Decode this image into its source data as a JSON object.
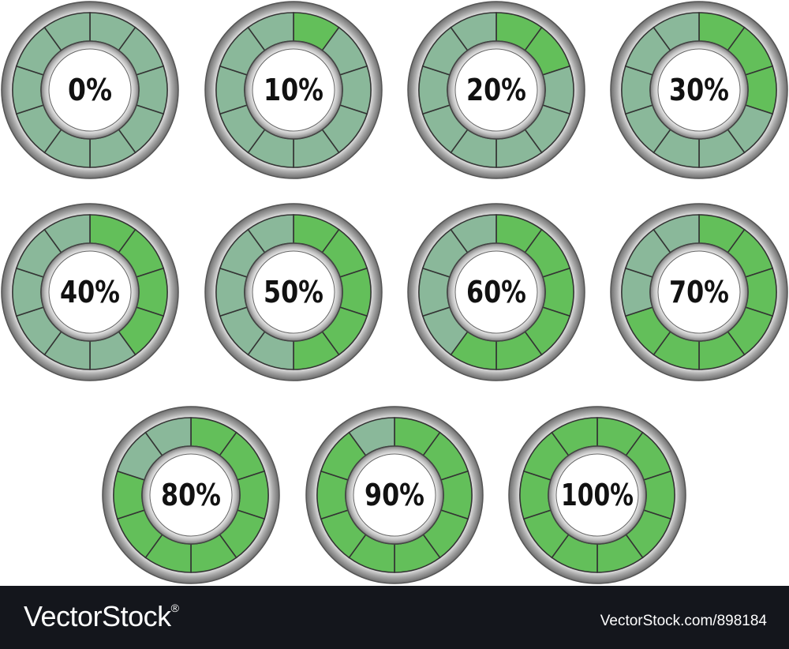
{
  "colors": {
    "filled": "#63bf5a",
    "empty": "#8ab89a",
    "outline": "#333333",
    "footer_bg": "#14161c"
  },
  "gauges": [
    {
      "label": "0%",
      "filled_segments": 0
    },
    {
      "label": "10%",
      "filled_segments": 1
    },
    {
      "label": "20%",
      "filled_segments": 2
    },
    {
      "label": "30%",
      "filled_segments": 3
    },
    {
      "label": "40%",
      "filled_segments": 4
    },
    {
      "label": "50%",
      "filled_segments": 5
    },
    {
      "label": "60%",
      "filled_segments": 6
    },
    {
      "label": "70%",
      "filled_segments": 7
    },
    {
      "label": "80%",
      "filled_segments": 8
    },
    {
      "label": "90%",
      "filled_segments": 9
    },
    {
      "label": "100%",
      "filled_segments": 10
    }
  ],
  "segments_per_gauge": 10,
  "footer": {
    "brand": "VectorStock",
    "trademark": "®",
    "credit": "VectorStock.com/898184"
  }
}
